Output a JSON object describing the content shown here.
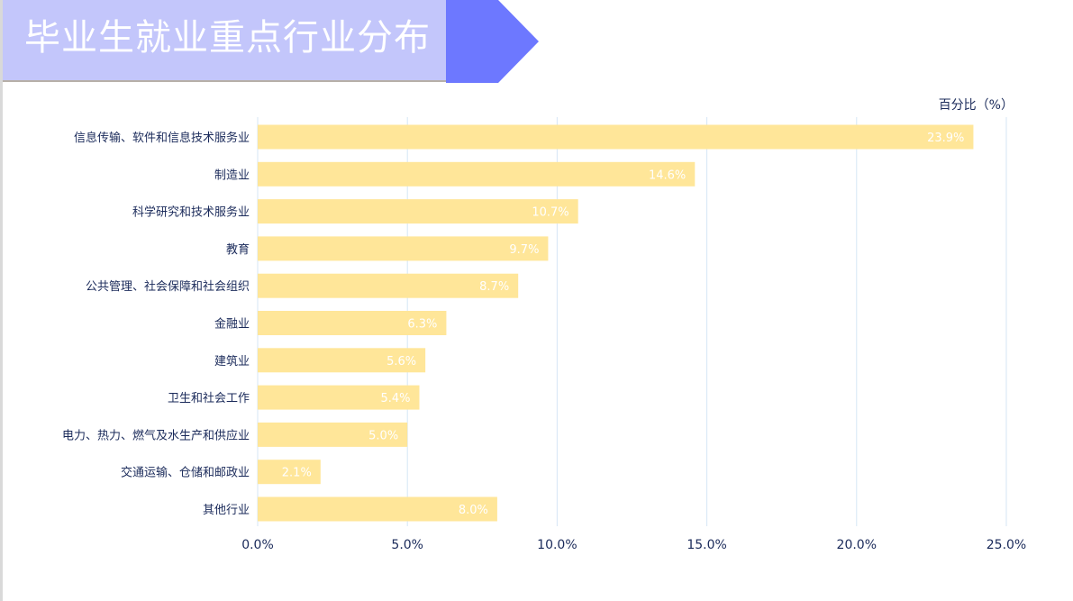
{
  "title": "毕业生就业重点行业分布",
  "colors": {
    "banner": "#c3c6fb",
    "arrow": "#6d78ff",
    "bar": "#ffe699",
    "bar_label": "#ffffff",
    "grid": "#d6e6f5",
    "text": "#1a2a5a"
  },
  "chart_data": {
    "type": "bar",
    "orientation": "horizontal",
    "unit_label": "百分比（%）",
    "categories": [
      "信息传输、软件和信息技术服务业",
      "制造业",
      "科学研究和技术服务业",
      "教育",
      "公共管理、社会保障和社会组织",
      "金融业",
      "建筑业",
      "卫生和社会工作",
      "电力、热力、燃气及水生产和供应业",
      "交通运输、仓储和邮政业",
      "其他行业"
    ],
    "values": [
      23.9,
      14.6,
      10.7,
      9.7,
      8.7,
      6.3,
      5.6,
      5.4,
      5.0,
      2.1,
      8.0
    ],
    "value_labels": [
      "23.9%",
      "14.6%",
      "10.7%",
      "9.7%",
      "8.7%",
      "6.3%",
      "5.6%",
      "5.4%",
      "5.0%",
      "2.1%",
      "8.0%"
    ],
    "xlim": [
      0,
      25
    ],
    "xticks": [
      0,
      5,
      10,
      15,
      20,
      25
    ],
    "xtick_labels": [
      "0.0%",
      "5.0%",
      "10.0%",
      "15.0%",
      "20.0%",
      "25.0%"
    ],
    "grid": true
  }
}
